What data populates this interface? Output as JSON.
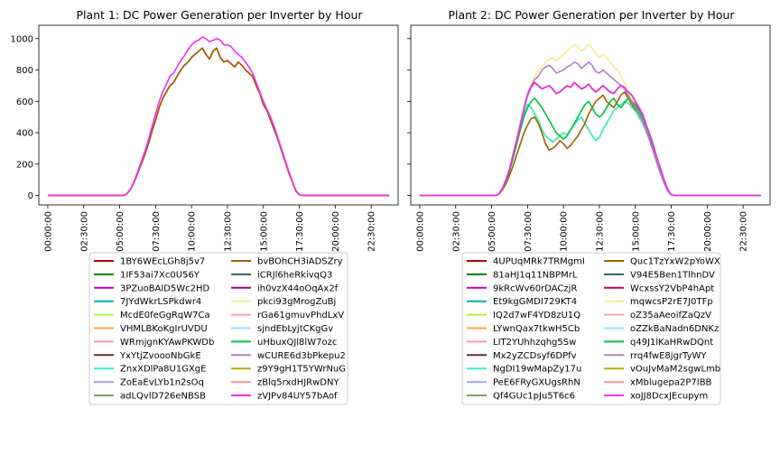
{
  "chart_data": [
    {
      "type": "line",
      "title": "Plant 1: DC Power Generation per Inverter by Hour",
      "xlabel": "",
      "ylabel": "",
      "x_ticks": [
        "00:00:00",
        "02:30:00",
        "05:00:00",
        "07:30:00",
        "10:00:00",
        "12:30:00",
        "15:00:00",
        "17:30:00",
        "20:00:00",
        "22:30:00"
      ],
      "y_ticks": [
        0,
        200,
        400,
        600,
        800,
        1000
      ],
      "ylim": [
        -60,
        1085
      ],
      "xlim_hours": [
        -0.625,
        24.375
      ],
      "grid": false,
      "legend_placement": "below",
      "profile_x_hours": [
        0,
        5.25,
        5.5,
        5.75,
        6,
        6.25,
        6.5,
        6.75,
        7,
        7.25,
        7.5,
        7.75,
        8,
        8.25,
        8.5,
        8.75,
        9,
        9.25,
        9.5,
        9.75,
        10,
        10.25,
        10.5,
        10.75,
        11,
        11.25,
        11.5,
        11.75,
        12,
        12.25,
        12.5,
        12.75,
        13,
        13.25,
        13.5,
        13.75,
        14,
        14.25,
        14.5,
        14.75,
        15,
        15.25,
        15.5,
        15.75,
        16,
        16.25,
        16.5,
        16.75,
        17,
        17.25,
        17.5,
        17.75,
        18,
        18.25,
        18.5,
        18.75,
        19,
        23.75
      ],
      "series": [
        {
          "name": "1BY6WEcLGh8j5v7",
          "color": "#c00000",
          "values": [
            0,
            0,
            10,
            40,
            85,
            140,
            200,
            260,
            330,
            410,
            480,
            560,
            620,
            660,
            700,
            720,
            760,
            800,
            830,
            850,
            880,
            900,
            920,
            940,
            900,
            870,
            920,
            940,
            880,
            850,
            860,
            840,
            820,
            850,
            830,
            800,
            780,
            760,
            700,
            650,
            580,
            540,
            480,
            420,
            360,
            290,
            220,
            150,
            90,
            30,
            5,
            0,
            0,
            0,
            0,
            0,
            0,
            0
          ]
        },
        {
          "name": "1IF53ai7Xc0U56Y",
          "color": "#008000"
        },
        {
          "name": "3PZuoBAlD5Wc2HD",
          "color": "#c000c0"
        },
        {
          "name": "7JYdWkrLSPkdwr4",
          "color": "#00b0b0"
        },
        {
          "name": "McdE0feGgRqW7Ca",
          "color": "#b0f040"
        },
        {
          "name": "VHMLBKoKgIrUVDU",
          "color": "#ffa040"
        },
        {
          "name": "WRmjgnKYAwPKWDb",
          "color": "#ff90c0"
        },
        {
          "name": "YxYtjZvoooNbGkE",
          "color": "#603030"
        },
        {
          "name": "ZnxXDlPa8U1GXgE",
          "color": "#30f0c0"
        },
        {
          "name": "ZoEaEvLYb1n2sOq",
          "color": "#a0a0ff"
        },
        {
          "name": "adLQvlD726eNBSB",
          "color": "#80a060"
        },
        {
          "name": "bvBOhCH3iADSZry",
          "color": "#a06000",
          "values": [
            0,
            0,
            10,
            40,
            85,
            140,
            200,
            260,
            330,
            410,
            480,
            560,
            620,
            660,
            700,
            720,
            760,
            800,
            830,
            850,
            880,
            900,
            920,
            940,
            900,
            870,
            920,
            940,
            880,
            850,
            860,
            840,
            820,
            850,
            830,
            800,
            780,
            760,
            700,
            650,
            580,
            540,
            480,
            420,
            360,
            290,
            220,
            150,
            90,
            30,
            5,
            0,
            0,
            0,
            0,
            0,
            0,
            0
          ]
        },
        {
          "name": "iCRJl6heRkivqQ3",
          "color": "#306060"
        },
        {
          "name": "ih0vzX44oOqAx2f",
          "color": "#a00080"
        },
        {
          "name": "pkci93gMrogZuBj",
          "color": "#f0f090"
        },
        {
          "name": "rGa61gmuvPhdLxV",
          "color": "#ffa0a0"
        },
        {
          "name": "sjndEbLyjtCKgGv",
          "color": "#90e0ff"
        },
        {
          "name": "uHbuxQJl8lW7ozc",
          "color": "#00c040"
        },
        {
          "name": "wCURE6d3bPkepu2",
          "color": "#b080c0"
        },
        {
          "name": "z9Y9gH1T5YWrNuG",
          "color": "#b0b000"
        },
        {
          "name": "zBlq5rxdHJRwDNY",
          "color": "#ff9090"
        },
        {
          "name": "zVJPv84UY57bAof",
          "color": "#f030f0",
          "values": [
            0,
            0,
            10,
            40,
            90,
            150,
            215,
            280,
            355,
            440,
            520,
            600,
            660,
            710,
            760,
            780,
            820,
            860,
            890,
            930,
            960,
            980,
            990,
            1010,
            1000,
            980,
            990,
            1000,
            990,
            960,
            960,
            950,
            920,
            900,
            880,
            850,
            820,
            780,
            720,
            660,
            600,
            550,
            500,
            440,
            370,
            300,
            230,
            160,
            95,
            35,
            5,
            0,
            0,
            0,
            0,
            0,
            0,
            0
          ]
        }
      ]
    },
    {
      "type": "line",
      "title": "Plant 2: DC Power Generation per Inverter by Hour",
      "xlabel": "",
      "ylabel": "",
      "x_ticks": [
        "00:00:00",
        "02:30:00",
        "05:00:00",
        "07:30:00",
        "10:00:00",
        "12:30:00",
        "15:00:00",
        "17:30:00",
        "20:00:00",
        "22:30:00"
      ],
      "ylim": [
        -60,
        1085
      ],
      "xlim_hours": [
        -0.625,
        24.375
      ],
      "grid": false,
      "legend_placement": "below",
      "profile_x_hours": [
        0,
        5.25,
        5.5,
        5.75,
        6,
        6.25,
        6.5,
        6.75,
        7,
        7.25,
        7.5,
        7.75,
        8,
        8.25,
        8.5,
        8.75,
        9,
        9.25,
        9.5,
        9.75,
        10,
        10.25,
        10.5,
        10.75,
        11,
        11.25,
        11.5,
        11.75,
        12,
        12.25,
        12.5,
        12.75,
        13,
        13.25,
        13.5,
        13.75,
        14,
        14.25,
        14.5,
        14.75,
        15,
        15.25,
        15.5,
        15.75,
        16,
        16.25,
        16.5,
        16.75,
        17,
        17.25,
        17.5,
        17.75,
        18,
        18.25,
        18.5,
        18.75,
        19,
        23.75
      ],
      "series": [
        {
          "name": "4UPUqMRk7TRMgmI",
          "color": "#c00000",
          "values": [
            0,
            0,
            10,
            45,
            100,
            170,
            260,
            350,
            450,
            550,
            640,
            690,
            720,
            700,
            680,
            690,
            700,
            680,
            650,
            660,
            680,
            700,
            690,
            720,
            700,
            680,
            690,
            710,
            680,
            660,
            680,
            700,
            680,
            660,
            650,
            680,
            700,
            690,
            660,
            640,
            600,
            560,
            520,
            450,
            390,
            320,
            240,
            170,
            100,
            40,
            5,
            0,
            0,
            0,
            0,
            0,
            0,
            0
          ]
        },
        {
          "name": "81aHJ1q11NBPMrL",
          "color": "#008000",
          "values": [
            0,
            0,
            10,
            45,
            100,
            170,
            260,
            350,
            450,
            550,
            640,
            690,
            720,
            700,
            680,
            690,
            700,
            680,
            650,
            660,
            680,
            700,
            690,
            720,
            700,
            680,
            690,
            710,
            680,
            660,
            680,
            700,
            680,
            660,
            650,
            680,
            700,
            690,
            660,
            640,
            600,
            560,
            520,
            450,
            390,
            320,
            240,
            170,
            100,
            40,
            5,
            0,
            0,
            0,
            0,
            0,
            0,
            0
          ]
        },
        {
          "name": "9kRcWv60rDACzjR",
          "color": "#c000c0"
        },
        {
          "name": "Et9kgGMDI729KT4",
          "color": "#00b0b0"
        },
        {
          "name": "IQ2d7wF4YD8zU1Q",
          "color": "#b0f040"
        },
        {
          "name": "LYwnQax7tkwH5Cb",
          "color": "#ffa040",
          "values": [
            0,
            0,
            10,
            40,
            90,
            160,
            240,
            330,
            420,
            510,
            580,
            560,
            520,
            480,
            420,
            380,
            360,
            340,
            360,
            380,
            400,
            390,
            420,
            450,
            480,
            500,
            460,
            420,
            380,
            350,
            370,
            420,
            460,
            500,
            540,
            560,
            580,
            600,
            590,
            560,
            540,
            500,
            460,
            410,
            350,
            290,
            220,
            150,
            90,
            35,
            5,
            0,
            0,
            0,
            0,
            0,
            0,
            0
          ]
        },
        {
          "name": "LIT2YUhhzqhg5Sw",
          "color": "#ff90c0"
        },
        {
          "name": "Mx2yZCDsyf6DPfv",
          "color": "#603030"
        },
        {
          "name": "NgDI19wMapZy17u",
          "color": "#30f0c0",
          "values": [
            0,
            0,
            10,
            40,
            90,
            160,
            240,
            330,
            420,
            510,
            580,
            560,
            520,
            480,
            420,
            380,
            360,
            340,
            360,
            380,
            400,
            390,
            420,
            450,
            480,
            500,
            460,
            420,
            380,
            350,
            370,
            420,
            460,
            500,
            540,
            560,
            580,
            600,
            590,
            560,
            540,
            500,
            460,
            410,
            350,
            290,
            220,
            150,
            90,
            35,
            5,
            0,
            0,
            0,
            0,
            0,
            0,
            0
          ]
        },
        {
          "name": "PeE6FRyGXUgsRhN",
          "color": "#a0a0ff"
        },
        {
          "name": "Qf4GUc1pJu5T6c6",
          "color": "#80a060"
        },
        {
          "name": "Quc1TzYxW2pYoWX",
          "color": "#a06000",
          "values": [
            0,
            0,
            8,
            35,
            75,
            130,
            190,
            260,
            330,
            400,
            450,
            490,
            500,
            460,
            400,
            330,
            290,
            300,
            320,
            350,
            330,
            300,
            320,
            350,
            380,
            420,
            460,
            520,
            560,
            600,
            620,
            640,
            600,
            580,
            560,
            600,
            640,
            660,
            620,
            580,
            550,
            520,
            480,
            420,
            350,
            280,
            210,
            140,
            80,
            30,
            5,
            0,
            0,
            0,
            0,
            0,
            0,
            0
          ]
        },
        {
          "name": "V94E5Ben1TlhnDV",
          "color": "#306060"
        },
        {
          "name": "WcxssY2VbP4hApt",
          "color": "#c00060"
        },
        {
          "name": "mqwcsP2rE7J0TFp",
          "color": "#f0f090",
          "values": [
            0,
            0,
            10,
            45,
            100,
            175,
            265,
            360,
            460,
            560,
            650,
            700,
            760,
            800,
            820,
            850,
            870,
            880,
            860,
            880,
            900,
            920,
            940,
            960,
            950,
            920,
            940,
            960,
            940,
            900,
            880,
            900,
            880,
            850,
            820,
            800,
            760,
            720,
            660,
            620,
            580,
            540,
            500,
            440,
            370,
            300,
            230,
            160,
            95,
            35,
            5,
            0,
            0,
            0,
            0,
            0,
            0,
            0
          ]
        },
        {
          "name": "oZ35aAeoifZaQzV",
          "color": "#ffa0a0"
        },
        {
          "name": "oZZkBaNadn6DNKz",
          "color": "#90e0ff"
        },
        {
          "name": "q49J1lKaHRwDQnt",
          "color": "#00c040",
          "values": [
            0,
            0,
            10,
            40,
            90,
            160,
            240,
            330,
            420,
            500,
            560,
            600,
            620,
            590,
            560,
            520,
            480,
            440,
            400,
            380,
            360,
            380,
            420,
            460,
            500,
            540,
            580,
            600,
            560,
            520,
            500,
            520,
            560,
            600,
            620,
            580,
            560,
            590,
            620,
            600,
            580,
            540,
            500,
            440,
            370,
            300,
            230,
            160,
            95,
            35,
            5,
            0,
            0,
            0,
            0,
            0,
            0,
            0
          ]
        },
        {
          "name": "rrq4fwE8jgrTyWY",
          "color": "#b080c0",
          "values": [
            0,
            0,
            10,
            45,
            100,
            175,
            265,
            360,
            460,
            560,
            650,
            700,
            740,
            760,
            800,
            820,
            830,
            810,
            780,
            790,
            800,
            820,
            830,
            850,
            840,
            810,
            830,
            850,
            830,
            790,
            780,
            800,
            780,
            760,
            740,
            720,
            700,
            680,
            640,
            600,
            560,
            520,
            480,
            420,
            350,
            280,
            210,
            140,
            80,
            30,
            5,
            0,
            0,
            0,
            0,
            0,
            0,
            0
          ]
        },
        {
          "name": "vOuJvMaM2sgwLmb",
          "color": "#b0b000"
        },
        {
          "name": "xMblugepa2P7IBB",
          "color": "#ff9090"
        },
        {
          "name": "xoJJ8DcxJEcupym",
          "color": "#f030f0",
          "values": [
            0,
            0,
            10,
            45,
            100,
            170,
            260,
            350,
            450,
            550,
            640,
            690,
            720,
            700,
            680,
            690,
            700,
            680,
            650,
            660,
            680,
            700,
            690,
            720,
            700,
            680,
            690,
            710,
            680,
            660,
            680,
            700,
            680,
            660,
            650,
            680,
            700,
            690,
            660,
            640,
            600,
            560,
            520,
            450,
            390,
            320,
            240,
            170,
            100,
            40,
            5,
            0,
            0,
            0,
            0,
            0,
            0,
            0
          ]
        }
      ]
    }
  ]
}
